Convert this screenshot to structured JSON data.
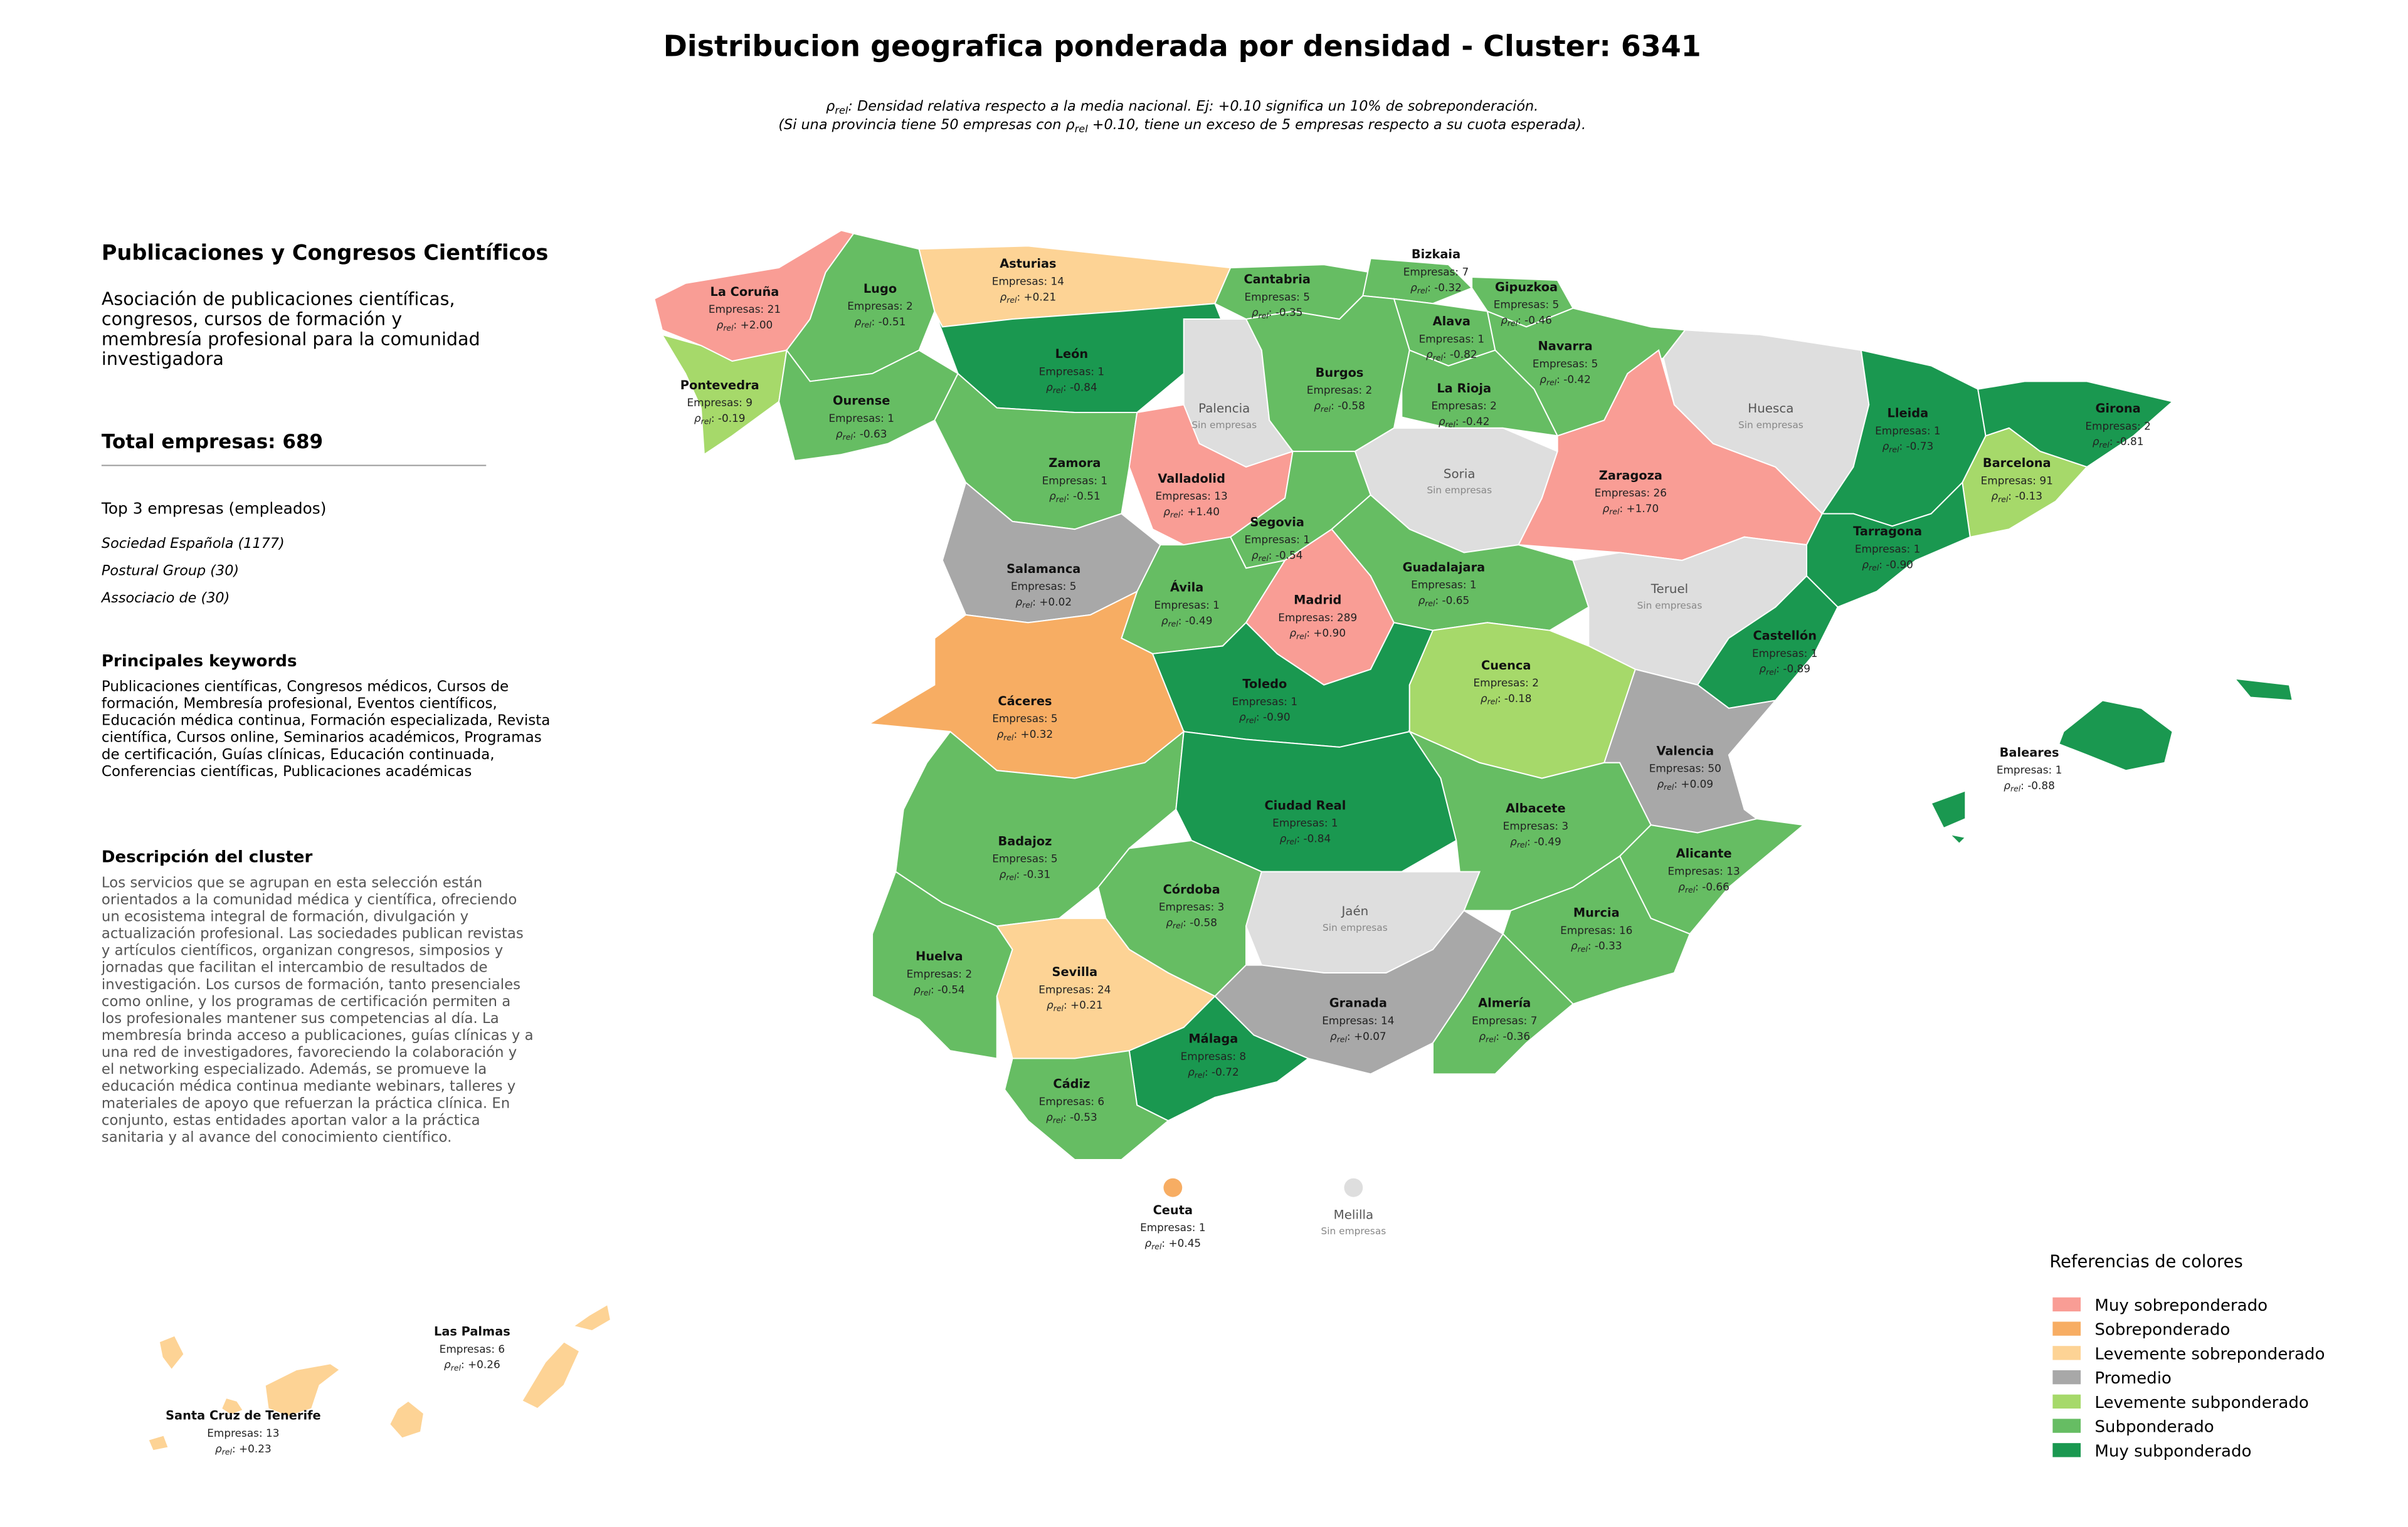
{
  "map": {
    "title": "Distribucion geografica ponderada por densidad - Cluster: 6341",
    "subtitle": [
      {
        "before": "",
        "symbol": "ρ",
        "sub": "rel",
        "after": ": Densidad relativa respecto a la media nacional. Ej: +0.10 significa un 10% de sobreponderación."
      },
      {
        "before": "(Si una provincia tiene 50 empresas con ",
        "symbol": "ρ",
        "sub": "rel",
        "after": " +0.10, tiene un exceso de 5 empresas respecto a su cuota esperada)."
      }
    ],
    "density_symbol": "ρ",
    "density_sub": "rel",
    "density_sep": ": ",
    "provinces": [
      {
        "name": "La Coruña",
        "companies": "Empresas: 21",
        "density": "+2.00",
        "color": "#f99d95"
      },
      {
        "name": "Lugo",
        "companies": "Empresas: 2",
        "density": "-0.51",
        "color": "#66bd63"
      },
      {
        "name": "Asturias",
        "companies": "Empresas: 14",
        "density": "+0.21",
        "color": "#fdd395"
      },
      {
        "name": "Cantabria",
        "companies": "Empresas: 5",
        "density": "-0.35",
        "color": "#66bd63"
      },
      {
        "name": "Bizkaia",
        "companies": "Empresas: 7",
        "density": "-0.32",
        "color": "#66bd63"
      },
      {
        "name": "Gipuzkoa",
        "companies": "Empresas: 5",
        "density": "-0.46",
        "color": "#66bd63"
      },
      {
        "name": "Alava",
        "companies": "Empresas: 1",
        "density": "-0.82",
        "color": "#66bd63"
      },
      {
        "name": "Navarra",
        "companies": "Empresas: 5",
        "density": "-0.42",
        "color": "#66bd63"
      },
      {
        "name": "León",
        "companies": "Empresas: 1",
        "density": "-0.84",
        "color": "#1a9850"
      },
      {
        "name": "Palencia",
        "status": "Sin empresas",
        "color": "#dedede"
      },
      {
        "name": "Burgos",
        "companies": "Empresas: 2",
        "density": "-0.58",
        "color": "#66bd63"
      },
      {
        "name": "La Rioja",
        "companies": "Empresas: 2",
        "density": "-0.42",
        "color": "#66bd63"
      },
      {
        "name": "Pontevedra",
        "companies": "Empresas: 9",
        "density": "-0.19",
        "color": "#a6d96a"
      },
      {
        "name": "Ourense",
        "companies": "Empresas: 1",
        "density": "-0.63",
        "color": "#66bd63"
      },
      {
        "name": "Zamora",
        "companies": "Empresas: 1",
        "density": "-0.51",
        "color": "#66bd63"
      },
      {
        "name": "Valladolid",
        "companies": "Empresas: 13",
        "density": "+1.40",
        "color": "#f99d95"
      },
      {
        "name": "Soria",
        "status": "Sin empresas",
        "color": "#dedede"
      },
      {
        "name": "Zaragoza",
        "companies": "Empresas: 26",
        "density": "+1.70",
        "color": "#f99d95"
      },
      {
        "name": "Huesca",
        "status": "Sin empresas",
        "color": "#dedede"
      },
      {
        "name": "Lleida",
        "companies": "Empresas: 1",
        "density": "-0.73",
        "color": "#1a9850"
      },
      {
        "name": "Girona",
        "companies": "Empresas: 2",
        "density": "-0.81",
        "color": "#1a9850"
      },
      {
        "name": "Barcelona",
        "companies": "Empresas: 91",
        "density": "-0.13",
        "color": "#a6d96a"
      },
      {
        "name": "Tarragona",
        "companies": "Empresas: 1",
        "density": "-0.90",
        "color": "#1a9850"
      },
      {
        "name": "Salamanca",
        "companies": "Empresas: 5",
        "density": "+0.02",
        "color": "#a8a8a8"
      },
      {
        "name": "Segovia",
        "companies": "Empresas: 1",
        "density": "-0.54",
        "color": "#66bd63"
      },
      {
        "name": "Ávila",
        "companies": "Empresas: 1",
        "density": "-0.49",
        "color": "#66bd63"
      },
      {
        "name": "Madrid",
        "companies": "Empresas: 289",
        "density": "+0.90",
        "color": "#f99d95"
      },
      {
        "name": "Guadalajara",
        "companies": "Empresas: 1",
        "density": "-0.65",
        "color": "#66bd63"
      },
      {
        "name": "Teruel",
        "status": "Sin empresas",
        "color": "#dedede"
      },
      {
        "name": "Castellón",
        "companies": "Empresas: 1",
        "density": "-0.89",
        "color": "#1a9850"
      },
      {
        "name": "Cáceres",
        "companies": "Empresas: 5",
        "density": "+0.32",
        "color": "#f7ad63"
      },
      {
        "name": "Toledo",
        "companies": "Empresas: 1",
        "density": "-0.90",
        "color": "#1a9850"
      },
      {
        "name": "Cuenca",
        "companies": "Empresas: 2",
        "density": "-0.18",
        "color": "#a6d96a"
      },
      {
        "name": "Valencia",
        "companies": "Empresas: 50",
        "density": "+0.09",
        "color": "#a8a8a8"
      },
      {
        "name": "Badajoz",
        "companies": "Empresas: 5",
        "density": "-0.31",
        "color": "#66bd63"
      },
      {
        "name": "Ciudad Real",
        "companies": "Empresas: 1",
        "density": "-0.84",
        "color": "#1a9850"
      },
      {
        "name": "Albacete",
        "companies": "Empresas: 3",
        "density": "-0.49",
        "color": "#66bd63"
      },
      {
        "name": "Alicante",
        "companies": "Empresas: 13",
        "density": "-0.66",
        "color": "#66bd63"
      },
      {
        "name": "Córdoba",
        "companies": "Empresas: 3",
        "density": "-0.58",
        "color": "#66bd63"
      },
      {
        "name": "Jaén",
        "status": "Sin empresas",
        "color": "#dedede"
      },
      {
        "name": "Murcia",
        "companies": "Empresas: 16",
        "density": "-0.33",
        "color": "#66bd63"
      },
      {
        "name": "Huelva",
        "companies": "Empresas: 2",
        "density": "-0.54",
        "color": "#66bd63"
      },
      {
        "name": "Sevilla",
        "companies": "Empresas: 24",
        "density": "+0.21",
        "color": "#fdd395"
      },
      {
        "name": "Granada",
        "companies": "Empresas: 14",
        "density": "+0.07",
        "color": "#a8a8a8"
      },
      {
        "name": "Almería",
        "companies": "Empresas: 7",
        "density": "-0.36",
        "color": "#66bd63"
      },
      {
        "name": "Málaga",
        "companies": "Empresas: 8",
        "density": "-0.72",
        "color": "#1a9850"
      },
      {
        "name": "Cádiz",
        "companies": "Empresas: 6",
        "density": "-0.53",
        "color": "#66bd63"
      },
      {
        "name": "Baleares",
        "companies": "Empresas: 1",
        "density": "-0.88",
        "color": "#1a9850"
      },
      {
        "name": "Ceuta",
        "companies": "Empresas: 1",
        "density": "+0.45",
        "color": "#f7ad63"
      },
      {
        "name": "Melilla",
        "status": "Sin empresas",
        "color": "#dedede"
      },
      {
        "name": "Las Palmas",
        "companies": "Empresas: 6",
        "density": "+0.26",
        "color": "#fdd395"
      },
      {
        "name": "Santa Cruz de Tenerife",
        "companies": "Empresas: 13",
        "density": "+0.23",
        "color": "#fdd395"
      }
    ],
    "legend": {
      "title": "Referencias de colores",
      "items": [
        {
          "label": "Muy sobreponderado",
          "color": "#f99d95"
        },
        {
          "label": "Sobreponderado",
          "color": "#f7ad63"
        },
        {
          "label": "Levemente sobreponderado",
          "color": "#fdd395"
        },
        {
          "label": "Promedio",
          "color": "#a8a8a8"
        },
        {
          "label": "Levemente subponderado",
          "color": "#a6d96a"
        },
        {
          "label": "Subponderado",
          "color": "#66bd63"
        },
        {
          "label": "Muy subponderado",
          "color": "#1a9850"
        }
      ]
    }
  },
  "sidebar": {
    "heading": "Publicaciones y Congresos Científicos",
    "summary": [
      "Asociación de publicaciones científicas,",
      "congresos, cursos de formación y",
      "membresía profesional para la comunidad",
      "investigadora"
    ],
    "total": "Total empresas: 689",
    "top_title": "Top 3 empresas (empleados)",
    "top": [
      "Sociedad Española (1177)",
      "Postural Group (30)",
      "Associacio de (30)"
    ],
    "keywords_title": "Principales keywords",
    "keywords": [
      "Publicaciones científicas, Congresos médicos, Cursos de",
      "formación, Membresía profesional, Eventos científicos,",
      "Educación médica continua, Formación especializada, Revista",
      "científica, Cursos online, Seminarios académicos, Programas",
      "de certificación, Guías clínicas, Educación continuada,",
      "Conferencias científicas, Publicaciones académicas"
    ],
    "description_title": "Descripción del cluster",
    "description": [
      "Los servicios que se agrupan en esta selección están",
      "orientados a la comunidad médica y científica, ofreciendo",
      "un ecosistema integral de formación, divulgación y",
      "actualización profesional. Las sociedades publican revistas",
      "y artículos científicos, organizan congresos, simposios y",
      "jornadas que facilitan el intercambio de resultados de",
      "investigación. Los cursos de formación, tanto presenciales",
      "como online, y los programas de certificación permiten a",
      "los profesionales mantener sus competencias al día. La",
      "membresía brinda acceso a publicaciones, guías clínicas y a",
      "una red de investigadores, favoreciendo la colaboración y",
      "el networking especializado. Además, se promueve la",
      "educación médica continua mediante webinars, talleres y",
      "materiales de apoyo que refuerzan la práctica clínica. En",
      "conjunto, estas entidades aportan valor a la práctica",
      "sanitaria y al avance del conocimiento científico."
    ]
  }
}
